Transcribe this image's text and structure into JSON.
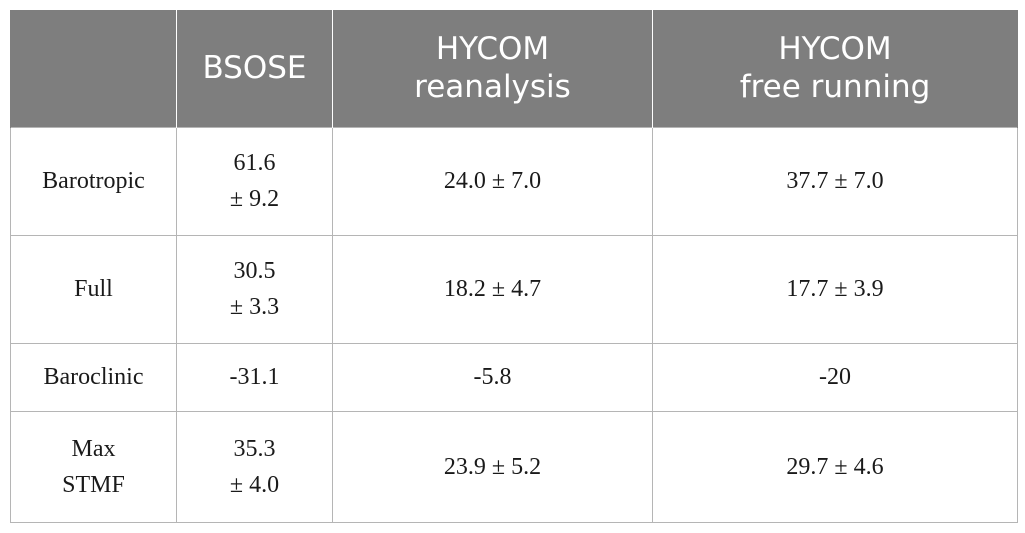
{
  "table": {
    "headers": [
      "",
      "BSOSE",
      "HYCOM\nreanalysis",
      "HYCOM\nfree running"
    ],
    "rows": [
      {
        "label": "Barotropic",
        "bsose": "61.6\n± 9.2",
        "hycom_reanalysis": "24.0 ± 7.0",
        "hycom_free_running": "37.7 ± 7.0"
      },
      {
        "label": "Full",
        "bsose": "30.5\n± 3.3",
        "hycom_reanalysis": "18.2 ± 4.7",
        "hycom_free_running": "17.7 ± 3.9"
      },
      {
        "label": "Baroclinic",
        "bsose": "-31.1",
        "hycom_reanalysis": "-5.8",
        "hycom_free_running": "-20"
      },
      {
        "label": "Max\nSTMF",
        "bsose": "35.3\n± 4.0",
        "hycom_reanalysis": "23.9 ± 5.2",
        "hycom_free_running": "29.7 ± 4.6"
      }
    ]
  },
  "colors": {
    "header_background": "#7e7e7e",
    "header_text": "#ffffff",
    "grid_lines": "#b5b5b5"
  }
}
